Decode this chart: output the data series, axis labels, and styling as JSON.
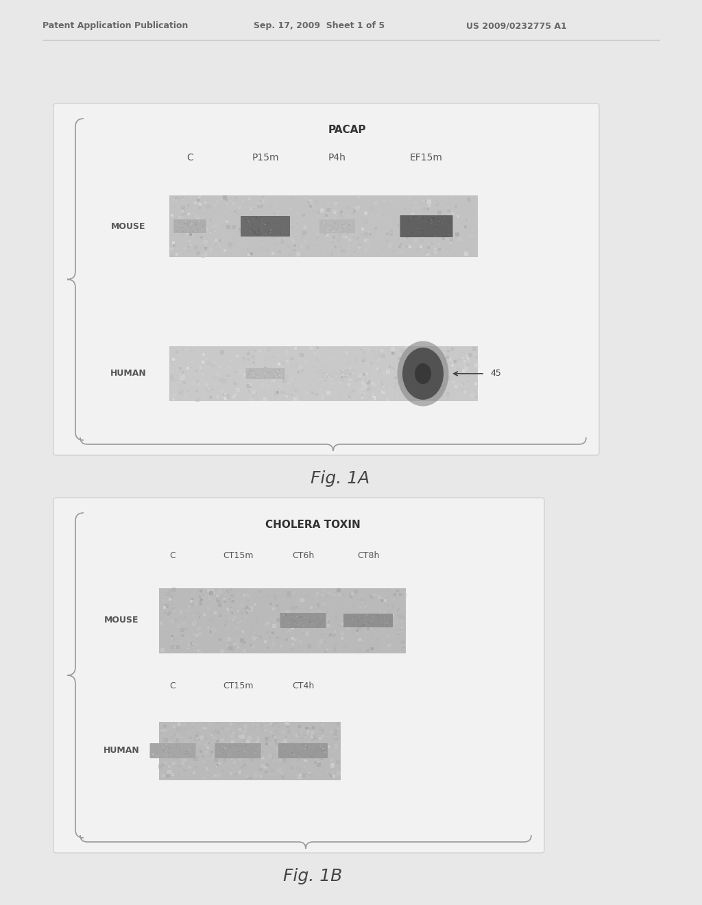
{
  "page_bg": "#e8e8e8",
  "inner_bg": "#e0e0e0",
  "header_text": "Patent Application Publication",
  "header_date": "Sep. 17, 2009  Sheet 1 of 5",
  "header_patent": "US 2009/0232775 A1",
  "header_color": "#666666",
  "header_fontsize": 9,
  "fig1a_title": "PACAP",
  "fig1a_title_fontsize": 11,
  "fig1a_cols": [
    "C",
    "P15m",
    "P4h",
    "EF15m"
  ],
  "fig1a_label_fontsize": 10,
  "fig1a_mouse_label": "MOUSE",
  "fig1a_human_label": "HUMAN",
  "fig1a_arrow_label": "45",
  "fig1a_caption": "Fig. 1A",
  "fig1a_caption_fontsize": 18,
  "fig1b_title": "CHOLERA TOXIN",
  "fig1b_title_fontsize": 11,
  "fig1b_mouse_cols": [
    "C",
    "CT15m",
    "CT6h",
    "CT8h"
  ],
  "fig1b_human_cols": [
    "C",
    "CT15m",
    "CT4h"
  ],
  "fig1b_label_fontsize": 10,
  "fig1b_mouse_label": "MOUSE",
  "fig1b_human_label": "HUMAN",
  "fig1b_caption": "Fig. 1B",
  "fig1b_caption_fontsize": 18
}
